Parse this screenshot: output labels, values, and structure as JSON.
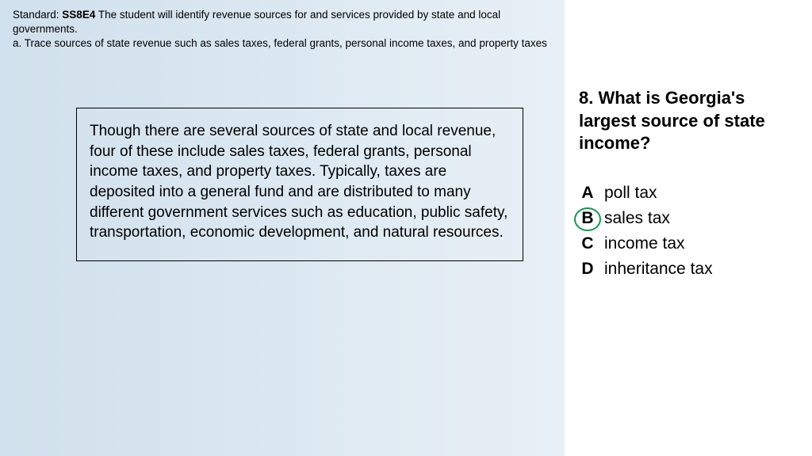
{
  "header": {
    "standard_label": "Standard: ",
    "standard_code": "SS8E4",
    "standard_desc": " The student will identify revenue sources for and services provided by state and local governments.",
    "sub_standard": "a. Trace sources of state revenue such as sales taxes, federal grants, personal income taxes, and property taxes"
  },
  "passage": {
    "text": "Though there are several sources of state and local revenue, four of these include sales taxes, federal grants, personal income taxes, and property taxes. Typically, taxes are deposited into a general fund and are distributed to many different government services such as education, public safety, transportation, economic development, and natural resources."
  },
  "question": {
    "text": "8. What is Georgia's largest source of state income?",
    "choices": [
      {
        "letter": "A",
        "text": "poll tax",
        "circled": false
      },
      {
        "letter": "B",
        "text": "sales tax",
        "circled": true
      },
      {
        "letter": "C",
        "text": "income tax",
        "circled": false
      },
      {
        "letter": "D",
        "text": "inheritance tax",
        "circled": false
      }
    ]
  },
  "style": {
    "left_bg_gradient_start": "#d0e0ec",
    "left_bg_gradient_end": "#e8f0f6",
    "right_bg": "#ffffff",
    "circle_color": "#1a9850",
    "text_color": "#000000",
    "passage_font_size": 19,
    "question_font_size": 22,
    "choice_font_size": 21,
    "header_font_size": 13.5
  }
}
